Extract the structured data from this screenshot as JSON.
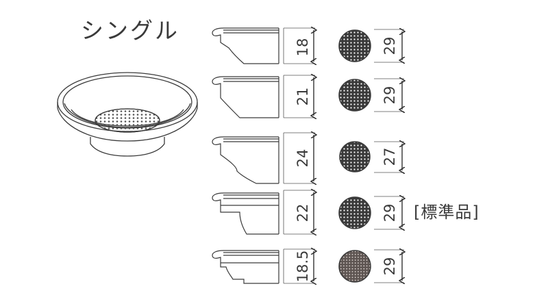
{
  "title": "シングル",
  "baskets": [
    {
      "depth": "18",
      "mesh_diameter": "29"
    },
    {
      "depth": "21",
      "mesh_diameter": "29"
    },
    {
      "depth": "24",
      "mesh_diameter": "27"
    },
    {
      "depth": "22",
      "mesh_diameter": "29",
      "tag": "[標準品]"
    },
    {
      "depth": "18.5",
      "mesh_diameter": "29"
    }
  ],
  "colors": {
    "mesh_dark": "#3a3a3a",
    "mesh_light": "#6b6360",
    "line": "#3a3a3a"
  }
}
